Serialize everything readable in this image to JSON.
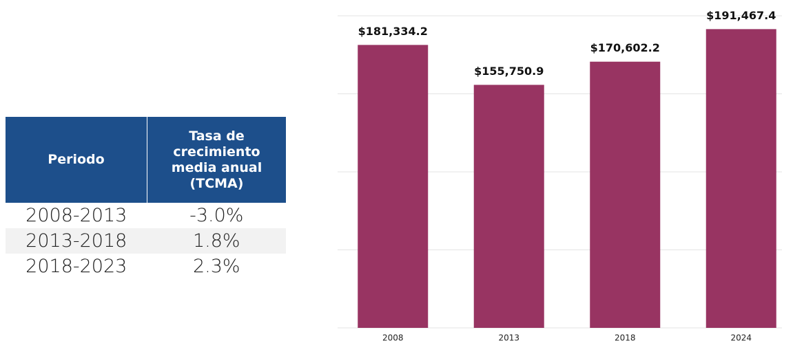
{
  "table": {
    "header": [
      "Periodo",
      "Tasa de crecimiento media anual (TCMA)"
    ],
    "rows": [
      [
        "2008-2013",
        "-3.0%"
      ],
      [
        "2013-2018",
        "1.8%"
      ],
      [
        "2018-2023",
        "2.3%"
      ]
    ]
  },
  "chart_data": {
    "type": "bar",
    "categories": [
      "2008",
      "2013",
      "2018",
      "2024"
    ],
    "values": [
      181334.2,
      155750.9,
      170602.2,
      191467.4
    ],
    "value_labels": [
      "$181,334.2",
      "$155,750.9",
      "$170,602.2",
      "$191,467.4"
    ],
    "color": "#983462",
    "ylim": [
      0,
      200000
    ],
    "yticks": [
      0,
      50000,
      100000,
      150000,
      200000
    ],
    "grid": true
  }
}
